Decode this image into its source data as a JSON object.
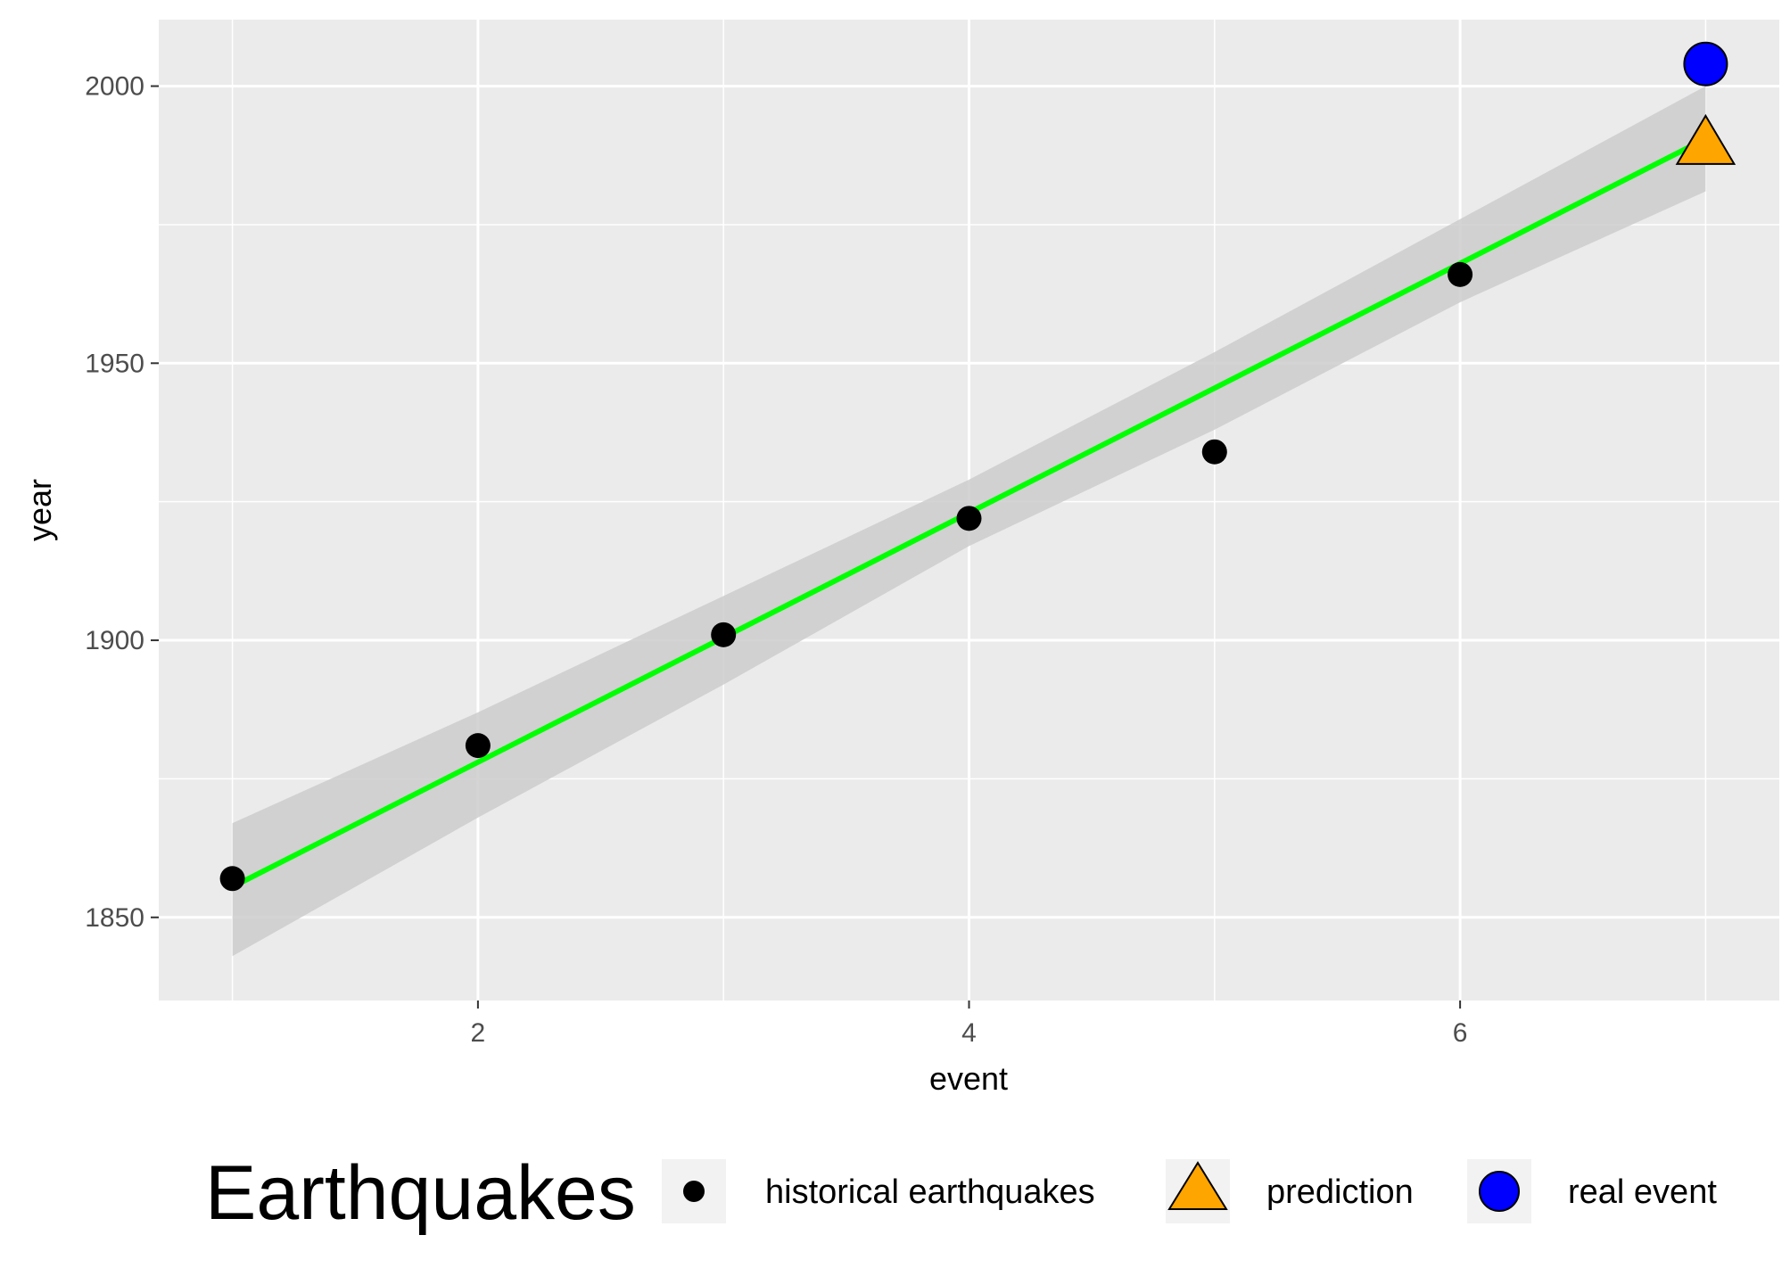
{
  "chart_data": {
    "type": "scatter",
    "xlabel": "event",
    "ylabel": "year",
    "xlim": [
      0.7,
      7.3
    ],
    "ylim": [
      1835,
      2012
    ],
    "x_major_ticks": [
      2,
      4,
      6
    ],
    "x_minor_gridlines": [
      1,
      3,
      5,
      7
    ],
    "y_major_ticks": [
      1850,
      1900,
      1950,
      2000
    ],
    "y_minor_gridlines": [
      1875,
      1925,
      1975
    ],
    "x_tick_labels": [
      "2",
      "4",
      "6"
    ],
    "y_tick_labels": [
      "1850",
      "1900",
      "1950",
      "2000"
    ],
    "grid": true,
    "series": [
      {
        "name": "historical earthquakes",
        "kind": "points",
        "marker": "circle",
        "color": "#000000",
        "x": [
          1,
          2,
          3,
          4,
          5,
          6
        ],
        "y": [
          1857,
          1881,
          1901,
          1922,
          1934,
          1966
        ]
      },
      {
        "name": "prediction",
        "kind": "point",
        "marker": "triangle",
        "color": "#FFA500",
        "x": [
          7
        ],
        "y": [
          1989.5
        ]
      },
      {
        "name": "real event",
        "kind": "point",
        "marker": "circle",
        "color": "#0000FF",
        "x": [
          7
        ],
        "y": [
          2004
        ]
      }
    ],
    "fit_line": {
      "color": "#00FF00",
      "x": [
        1,
        7
      ],
      "y": [
        1855.5,
        1990.5
      ]
    },
    "confidence_band": {
      "color": "#cccccc",
      "x": [
        1,
        2,
        3,
        4,
        5,
        6,
        7
      ],
      "lower": [
        1843,
        1868,
        1892,
        1917,
        1938,
        1961,
        1981
      ],
      "upper": [
        1867,
        1887,
        1908,
        1929,
        1952,
        1976,
        2000
      ]
    },
    "legend": {
      "title": "Earthquakes",
      "position": "bottom",
      "entries": [
        {
          "label": "historical earthquakes",
          "marker": "circle",
          "color": "#000000"
        },
        {
          "label": "prediction",
          "marker": "triangle",
          "color": "#FFA500"
        },
        {
          "label": "real event",
          "marker": "circle",
          "color": "#0000FF"
        }
      ]
    }
  }
}
